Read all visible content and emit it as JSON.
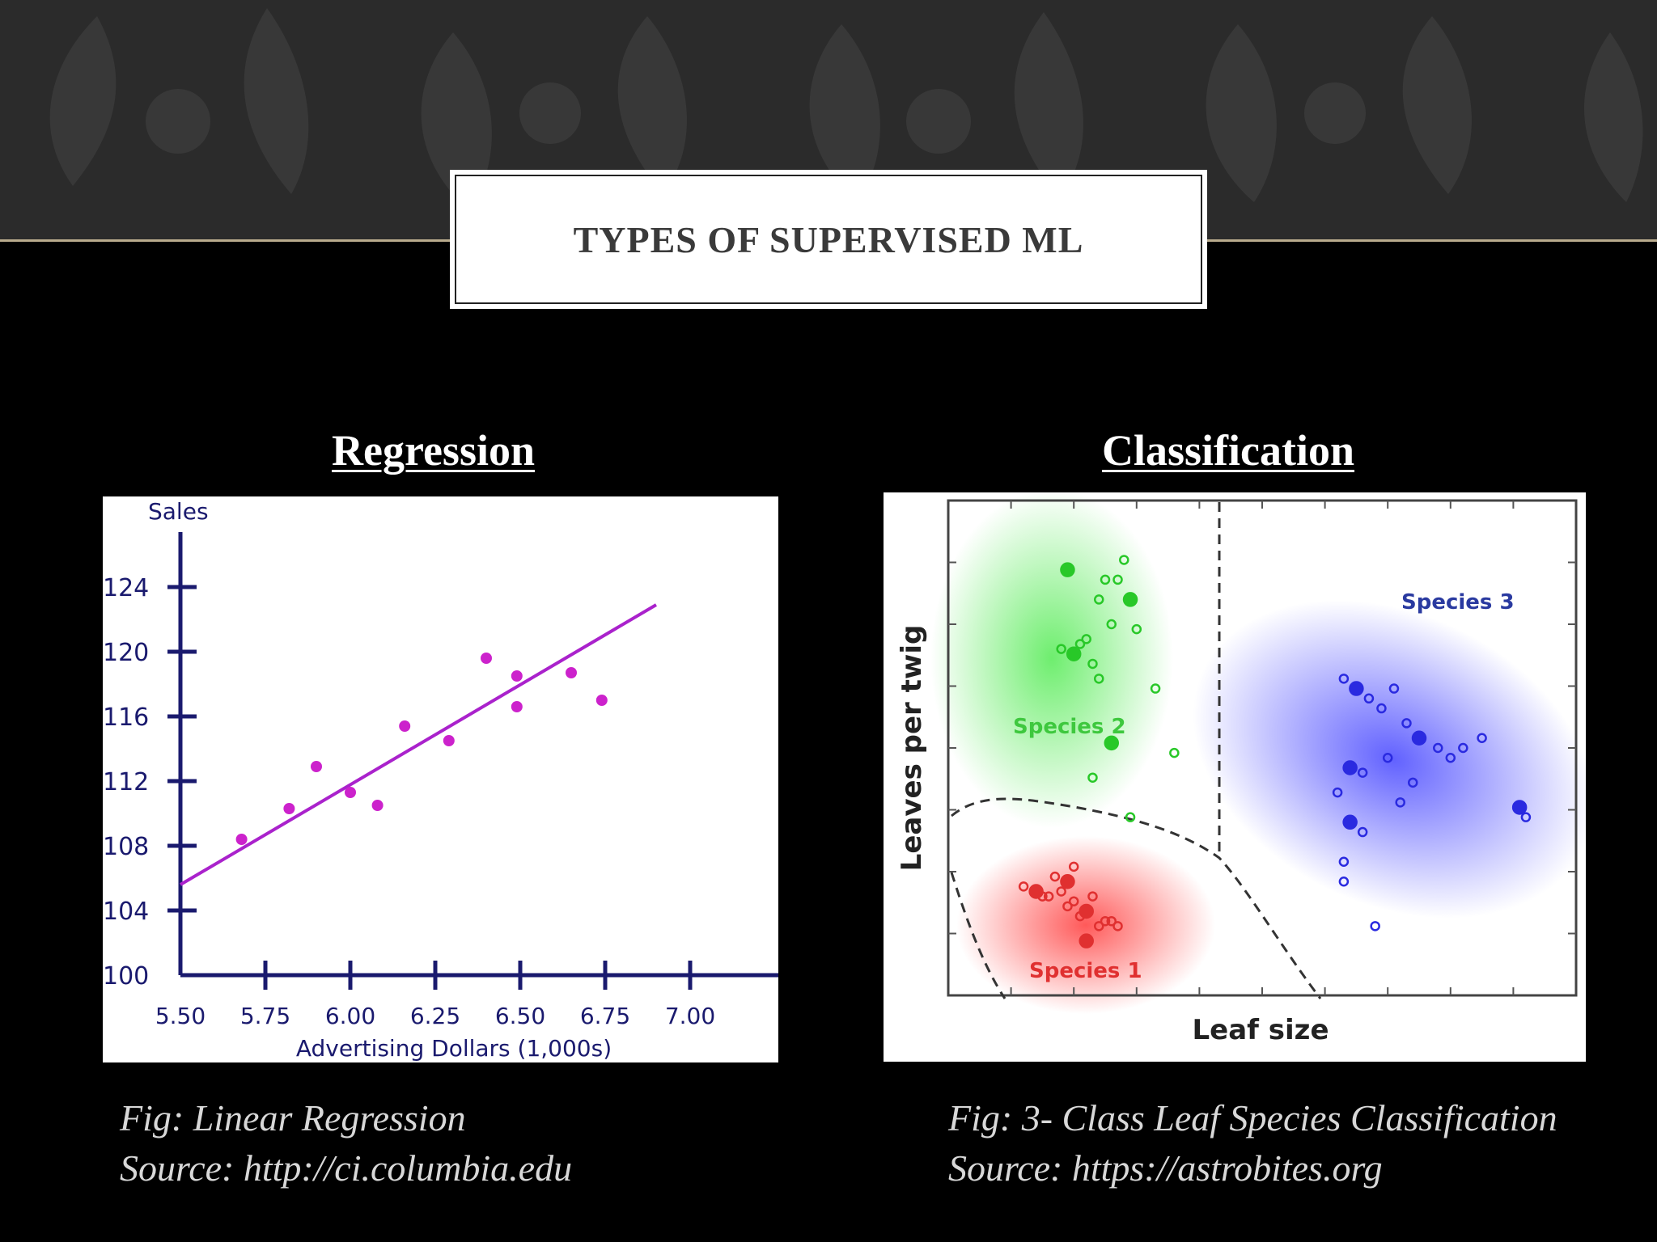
{
  "slide": {
    "title": "TYPES OF SUPERVISED ML",
    "left_heading": "Regression",
    "right_heading": "Classification",
    "left_caption": "Fig: Linear Regression",
    "left_source": "Source: http://ci.columbia.edu",
    "right_caption": "Fig: 3- Class Leaf Species Classification",
    "right_source": "Source: https://astrobites.org",
    "colors": {
      "banner": "#2b2b2b",
      "banner_rule": "#b9ab8d",
      "background": "#000000"
    }
  },
  "chart_data": [
    {
      "type": "scatter",
      "title": "",
      "xlabel": "Advertising Dollars (1,000s)",
      "ylabel": "Sales",
      "xlim": [
        5.5,
        7.2
      ],
      "ylim": [
        100,
        127
      ],
      "x_ticks": [
        "5.50",
        "5.75",
        "6.00",
        "6.25",
        "6.50",
        "6.75",
        "7.00"
      ],
      "y_ticks": [
        "100",
        "104",
        "108",
        "112",
        "116",
        "120",
        "124"
      ],
      "grid": false,
      "points": [
        {
          "x": 5.68,
          "y": 108.4
        },
        {
          "x": 5.82,
          "y": 110.3
        },
        {
          "x": 5.9,
          "y": 112.9
        },
        {
          "x": 6.0,
          "y": 111.3
        },
        {
          "x": 6.08,
          "y": 110.5
        },
        {
          "x": 6.16,
          "y": 115.4
        },
        {
          "x": 6.29,
          "y": 114.5
        },
        {
          "x": 6.4,
          "y": 119.6
        },
        {
          "x": 6.49,
          "y": 118.5
        },
        {
          "x": 6.49,
          "y": 116.6
        },
        {
          "x": 6.65,
          "y": 118.7
        },
        {
          "x": 6.74,
          "y": 117.0
        }
      ],
      "fit_line": {
        "x": [
          5.5,
          6.9
        ],
        "y": [
          105.6,
          122.9
        ]
      },
      "colors": {
        "points": "#cc22cc",
        "line": "#aa22cc",
        "axes": "#1a1a6e"
      }
    },
    {
      "type": "scatter",
      "title": "",
      "xlabel": "Leaf size",
      "ylabel": "Leaves per twig",
      "xlim": [
        0,
        10
      ],
      "ylim": [
        0,
        10
      ],
      "grid": false,
      "series": [
        {
          "name": "Species 1",
          "color": "#e03030",
          "x": [
            1.2,
            1.4,
            1.6,
            1.8,
            1.9,
            2.1,
            2.2,
            2.3,
            2.4,
            2.5,
            1.7,
            1.9,
            2.0,
            2.6,
            2.7,
            1.5,
            2.2,
            2.0
          ],
          "y": [
            2.2,
            2.1,
            2.0,
            2.1,
            1.8,
            1.6,
            1.7,
            2.0,
            1.4,
            1.5,
            2.4,
            2.3,
            2.6,
            1.5,
            1.4,
            2.0,
            1.1,
            1.9
          ]
        },
        {
          "name": "Species 2",
          "color": "#28c828",
          "x": [
            1.8,
            2.0,
            2.2,
            2.4,
            2.5,
            2.7,
            2.9,
            3.0,
            2.6,
            2.3,
            2.1,
            1.9,
            2.8,
            2.4,
            3.3,
            3.6,
            2.6,
            2.3,
            2.9
          ],
          "y": [
            7.0,
            6.9,
            7.2,
            8.0,
            8.4,
            8.4,
            8.0,
            7.4,
            7.5,
            6.7,
            7.1,
            8.6,
            8.8,
            6.4,
            6.2,
            4.9,
            5.1,
            4.4,
            3.6
          ],
          "label_pos": {
            "x": 1.2,
            "y": 5.7
          }
        },
        {
          "name": "Species 3",
          "color": "#2a2ae0",
          "x": [
            6.3,
            6.5,
            6.7,
            6.9,
            7.1,
            7.3,
            7.5,
            7.8,
            8.0,
            8.2,
            8.5,
            6.4,
            6.6,
            7.0,
            7.4,
            6.2,
            6.4,
            6.6,
            6.3,
            6.3,
            6.8,
            9.1,
            9.2,
            7.2
          ],
          "y": [
            6.4,
            6.2,
            6.0,
            5.8,
            6.2,
            5.5,
            5.2,
            5.0,
            4.8,
            5.0,
            5.2,
            4.6,
            4.5,
            4.8,
            4.3,
            4.1,
            3.5,
            3.3,
            2.3,
            2.7,
            1.4,
            3.8,
            3.6,
            3.9
          ]
        }
      ]
    }
  ]
}
